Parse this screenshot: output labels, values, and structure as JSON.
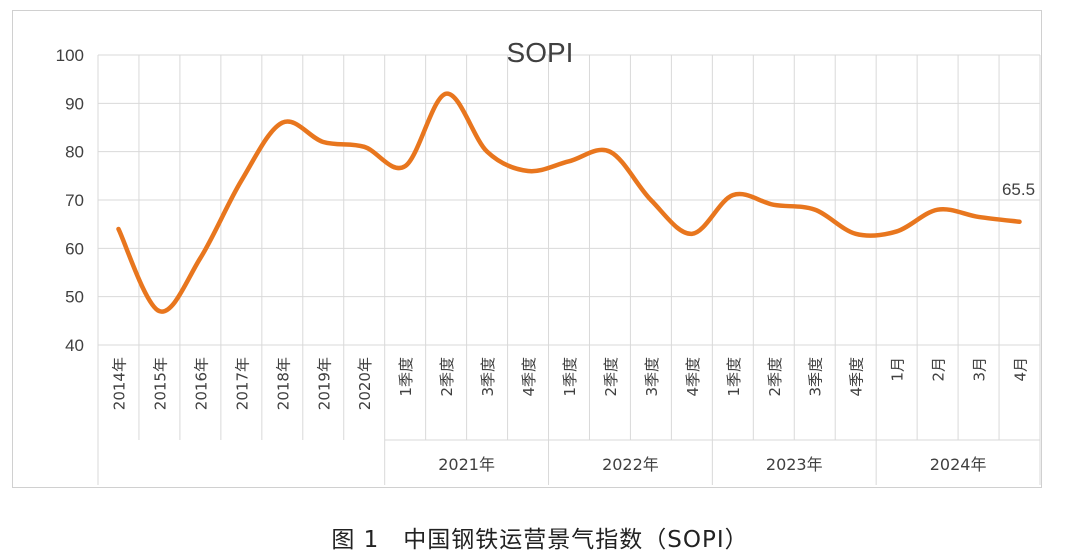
{
  "caption": "图 1　中国钢铁运营景气指数（SOPI）",
  "chart_data": {
    "type": "line",
    "title": "SOPI",
    "xlabel": "",
    "ylabel": "",
    "ylim": [
      40,
      100
    ],
    "yticks": [
      40,
      50,
      60,
      70,
      80,
      90,
      100
    ],
    "grid": true,
    "legend": "none",
    "line_color": "#E8761E",
    "categories": [
      "2014年",
      "2015年",
      "2016年",
      "2017年",
      "2018年",
      "2019年",
      "2020年",
      "1季度",
      "2季度",
      "3季度",
      "4季度",
      "1季度",
      "2季度",
      "3季度",
      "4季度",
      "1季度",
      "2季度",
      "3季度",
      "4季度",
      "1月",
      "2月",
      "3月",
      "4月"
    ],
    "groups": [
      {
        "label": "2021年",
        "start": 7,
        "end": 10
      },
      {
        "label": "2022年",
        "start": 11,
        "end": 14
      },
      {
        "label": "2023年",
        "start": 15,
        "end": 18
      },
      {
        "label": "2024年",
        "start": 19,
        "end": 22
      }
    ],
    "values": [
      64,
      47,
      58,
      74,
      86,
      82,
      81,
      77,
      92,
      80,
      76,
      78,
      80,
      70,
      63,
      71,
      69,
      68,
      63,
      63.5,
      68,
      66.5,
      65.5
    ],
    "data_labels": [
      {
        "index": 22,
        "text": "65.5"
      }
    ]
  }
}
